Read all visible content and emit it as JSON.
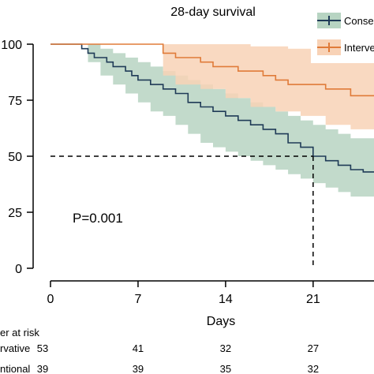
{
  "chart_data": {
    "type": "line",
    "title": "28-day survival",
    "xlabel": "Days",
    "ylabel": "",
    "xlim": [
      0,
      28
    ],
    "ylim": [
      0,
      100
    ],
    "x_ticks": [
      0,
      7,
      14,
      21
    ],
    "y_ticks": [
      0,
      25,
      50,
      75,
      100
    ],
    "grid": false,
    "legend_placement": "top-right",
    "annotation": "P=0.001",
    "median_marker": {
      "y": 50,
      "x": 21
    },
    "colors": {
      "conservative": "#1f3b57",
      "conservative_ci": "#b7d4c2",
      "interventional": "#e07b39",
      "interventional_ci": "#f8d2b6",
      "reference_line": "#000000"
    },
    "series": [
      {
        "name": "Consec",
        "steps": [
          [
            0,
            100
          ],
          [
            1,
            100
          ],
          [
            2,
            100
          ],
          [
            2.5,
            98
          ],
          [
            3,
            96
          ],
          [
            3.5,
            94
          ],
          [
            4.5,
            92
          ],
          [
            5,
            90
          ],
          [
            6,
            88
          ],
          [
            6.5,
            86
          ],
          [
            7,
            84
          ],
          [
            8,
            82
          ],
          [
            9,
            80
          ],
          [
            10,
            78
          ],
          [
            11,
            74
          ],
          [
            12,
            72
          ],
          [
            13,
            70
          ],
          [
            14,
            68
          ],
          [
            15,
            66
          ],
          [
            16,
            64
          ],
          [
            17,
            62
          ],
          [
            18,
            60
          ],
          [
            19,
            56
          ],
          [
            20,
            54
          ],
          [
            21,
            50
          ],
          [
            22,
            48
          ],
          [
            23,
            46
          ],
          [
            24,
            44
          ],
          [
            25,
            43
          ],
          [
            26,
            43
          ],
          [
            28,
            43
          ]
        ],
        "ci_upper": [
          [
            0,
            100
          ],
          [
            2,
            100
          ],
          [
            3,
            100
          ],
          [
            4,
            98
          ],
          [
            5,
            96
          ],
          [
            6,
            94
          ],
          [
            7,
            92
          ],
          [
            8,
            90
          ],
          [
            9,
            88
          ],
          [
            10,
            86
          ],
          [
            11,
            84
          ],
          [
            12,
            82
          ],
          [
            13,
            80
          ],
          [
            14,
            78
          ],
          [
            15,
            76
          ],
          [
            16,
            74
          ],
          [
            17,
            72
          ],
          [
            18,
            70
          ],
          [
            19,
            68
          ],
          [
            20,
            66
          ],
          [
            21,
            64
          ],
          [
            22,
            62
          ],
          [
            23,
            60
          ],
          [
            24,
            58
          ],
          [
            26,
            57
          ],
          [
            28,
            57
          ]
        ],
        "ci_lower": [
          [
            0,
            100
          ],
          [
            2,
            100
          ],
          [
            3,
            92
          ],
          [
            4,
            86
          ],
          [
            5,
            82
          ],
          [
            6,
            78
          ],
          [
            7,
            74
          ],
          [
            8,
            70
          ],
          [
            9,
            68
          ],
          [
            10,
            64
          ],
          [
            11,
            60
          ],
          [
            12,
            56
          ],
          [
            13,
            54
          ],
          [
            14,
            52
          ],
          [
            15,
            50
          ],
          [
            16,
            48
          ],
          [
            17,
            46
          ],
          [
            18,
            44
          ],
          [
            19,
            42
          ],
          [
            20,
            40
          ],
          [
            21,
            38
          ],
          [
            22,
            36
          ],
          [
            23,
            34
          ],
          [
            24,
            32
          ],
          [
            26,
            31
          ],
          [
            28,
            31
          ]
        ]
      },
      {
        "name": "Interve",
        "steps": [
          [
            0,
            100
          ],
          [
            9,
            100
          ],
          [
            9,
            96
          ],
          [
            10,
            94
          ],
          [
            12,
            92
          ],
          [
            13,
            90
          ],
          [
            15,
            88
          ],
          [
            17,
            86
          ],
          [
            18,
            84
          ],
          [
            19,
            82
          ],
          [
            22,
            80
          ],
          [
            24,
            77
          ],
          [
            28,
            77
          ]
        ],
        "ci_upper": [
          [
            0,
            100
          ],
          [
            9,
            100
          ],
          [
            10,
            100
          ],
          [
            13,
            100
          ],
          [
            16,
            99
          ],
          [
            19,
            98
          ],
          [
            22,
            97
          ],
          [
            25,
            96
          ],
          [
            28,
            96
          ]
        ],
        "ci_lower": [
          [
            0,
            100
          ],
          [
            9,
            100
          ],
          [
            9,
            86
          ],
          [
            10,
            82
          ],
          [
            12,
            80
          ],
          [
            14,
            76
          ],
          [
            16,
            72
          ],
          [
            18,
            70
          ],
          [
            20,
            68
          ],
          [
            22,
            64
          ],
          [
            24,
            62
          ],
          [
            26,
            60
          ],
          [
            28,
            60
          ]
        ]
      }
    ],
    "risk_table": {
      "title": "er at risk",
      "rows": [
        {
          "label": "rvative",
          "values": [
            "53",
            "41",
            "32",
            "27"
          ]
        },
        {
          "label": "ntional",
          "values": [
            "39",
            "39",
            "35",
            "32"
          ]
        }
      ]
    }
  }
}
